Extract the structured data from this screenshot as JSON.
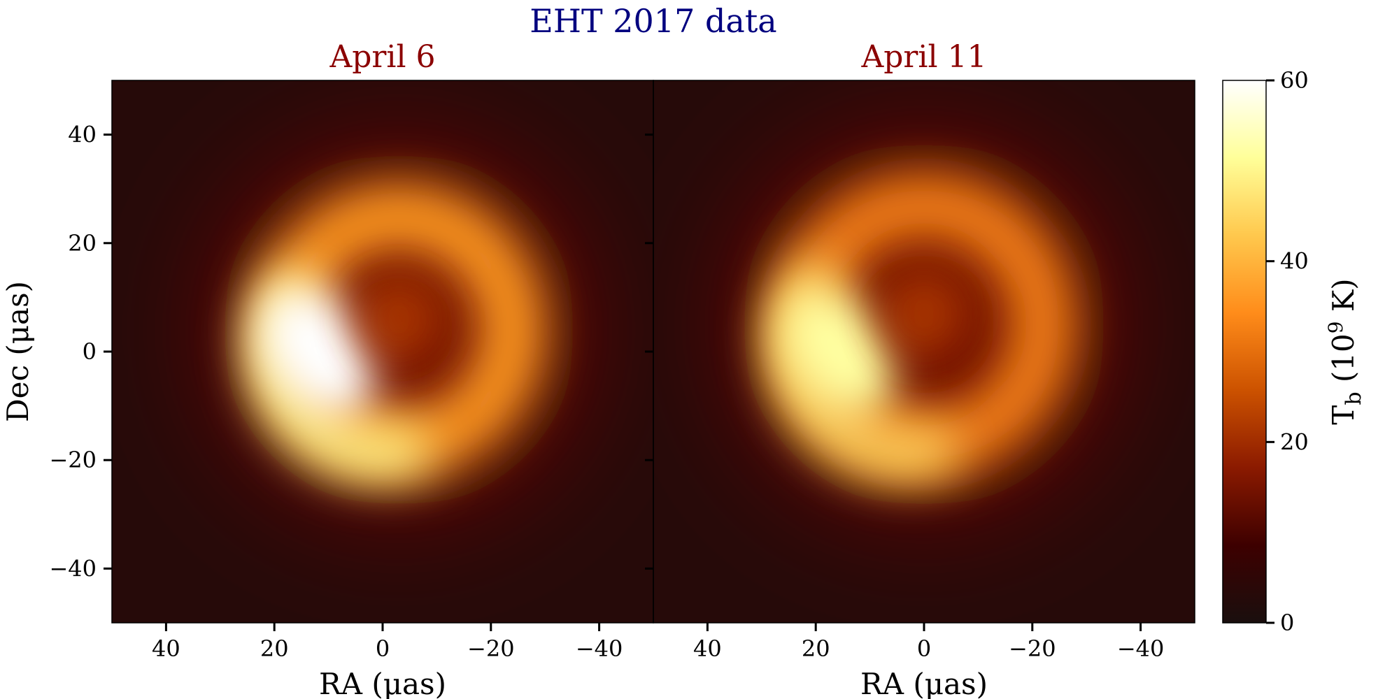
{
  "figure": {
    "suptitle": "EHT 2017 data",
    "suptitle_color": "#00007f",
    "panel_title_color": "#8b0000"
  },
  "chart_data": {
    "type": "heatmap",
    "panels": [
      {
        "title": "April 6",
        "xlabel": "RA (μas)",
        "ylabel": "Dec (μas)",
        "xlim": [
          50,
          -50
        ],
        "ylim": [
          -50,
          50
        ],
        "xticks": [
          "40",
          "20",
          "0",
          "−20",
          "−40"
        ],
        "yticks": [
          "40",
          "20",
          "0",
          "−20",
          "−40"
        ],
        "xtick_values": [
          40,
          20,
          0,
          -20,
          -40
        ],
        "ytick_values": [
          40,
          20,
          0,
          -20,
          -40
        ],
        "ring_center": [
          -3,
          4
        ],
        "ring_radius_uas": 21,
        "ring_peak_Tb": 50,
        "bright_spot": {
          "ra": 12,
          "dec": 0,
          "peak_Tb": 60
        }
      },
      {
        "title": "April 11",
        "xlabel": "RA (μas)",
        "ylabel": "",
        "xlim": [
          50,
          -50
        ],
        "ylim": [
          -50,
          50
        ],
        "xticks": [
          "40",
          "20",
          "0",
          "−20",
          "−40"
        ],
        "yticks": [],
        "xtick_values": [
          40,
          20,
          0,
          -20,
          -40
        ],
        "ytick_values": [
          40,
          20,
          0,
          -20,
          -40
        ],
        "ring_center": [
          0,
          5
        ],
        "ring_radius_uas": 22,
        "ring_peak_Tb": 45,
        "bright_spot": {
          "ra": 16,
          "dec": 0,
          "peak_Tb": 52
        }
      }
    ],
    "colorbar": {
      "label": "T",
      "label_sub": "b",
      "label_rest": " (10",
      "label_sup": "9",
      "label_end": " K)",
      "range": [
        0,
        60
      ],
      "ticks": [
        "0",
        "20",
        "40",
        "60"
      ],
      "tick_values": [
        0,
        20,
        40,
        60
      ],
      "colormap": "afmhot",
      "stops": [
        "#1a0f0e",
        "#3d0000",
        "#8b1a00",
        "#cc5200",
        "#ff8c1a",
        "#ffc84d",
        "#ffff99",
        "#ffffff"
      ]
    }
  }
}
